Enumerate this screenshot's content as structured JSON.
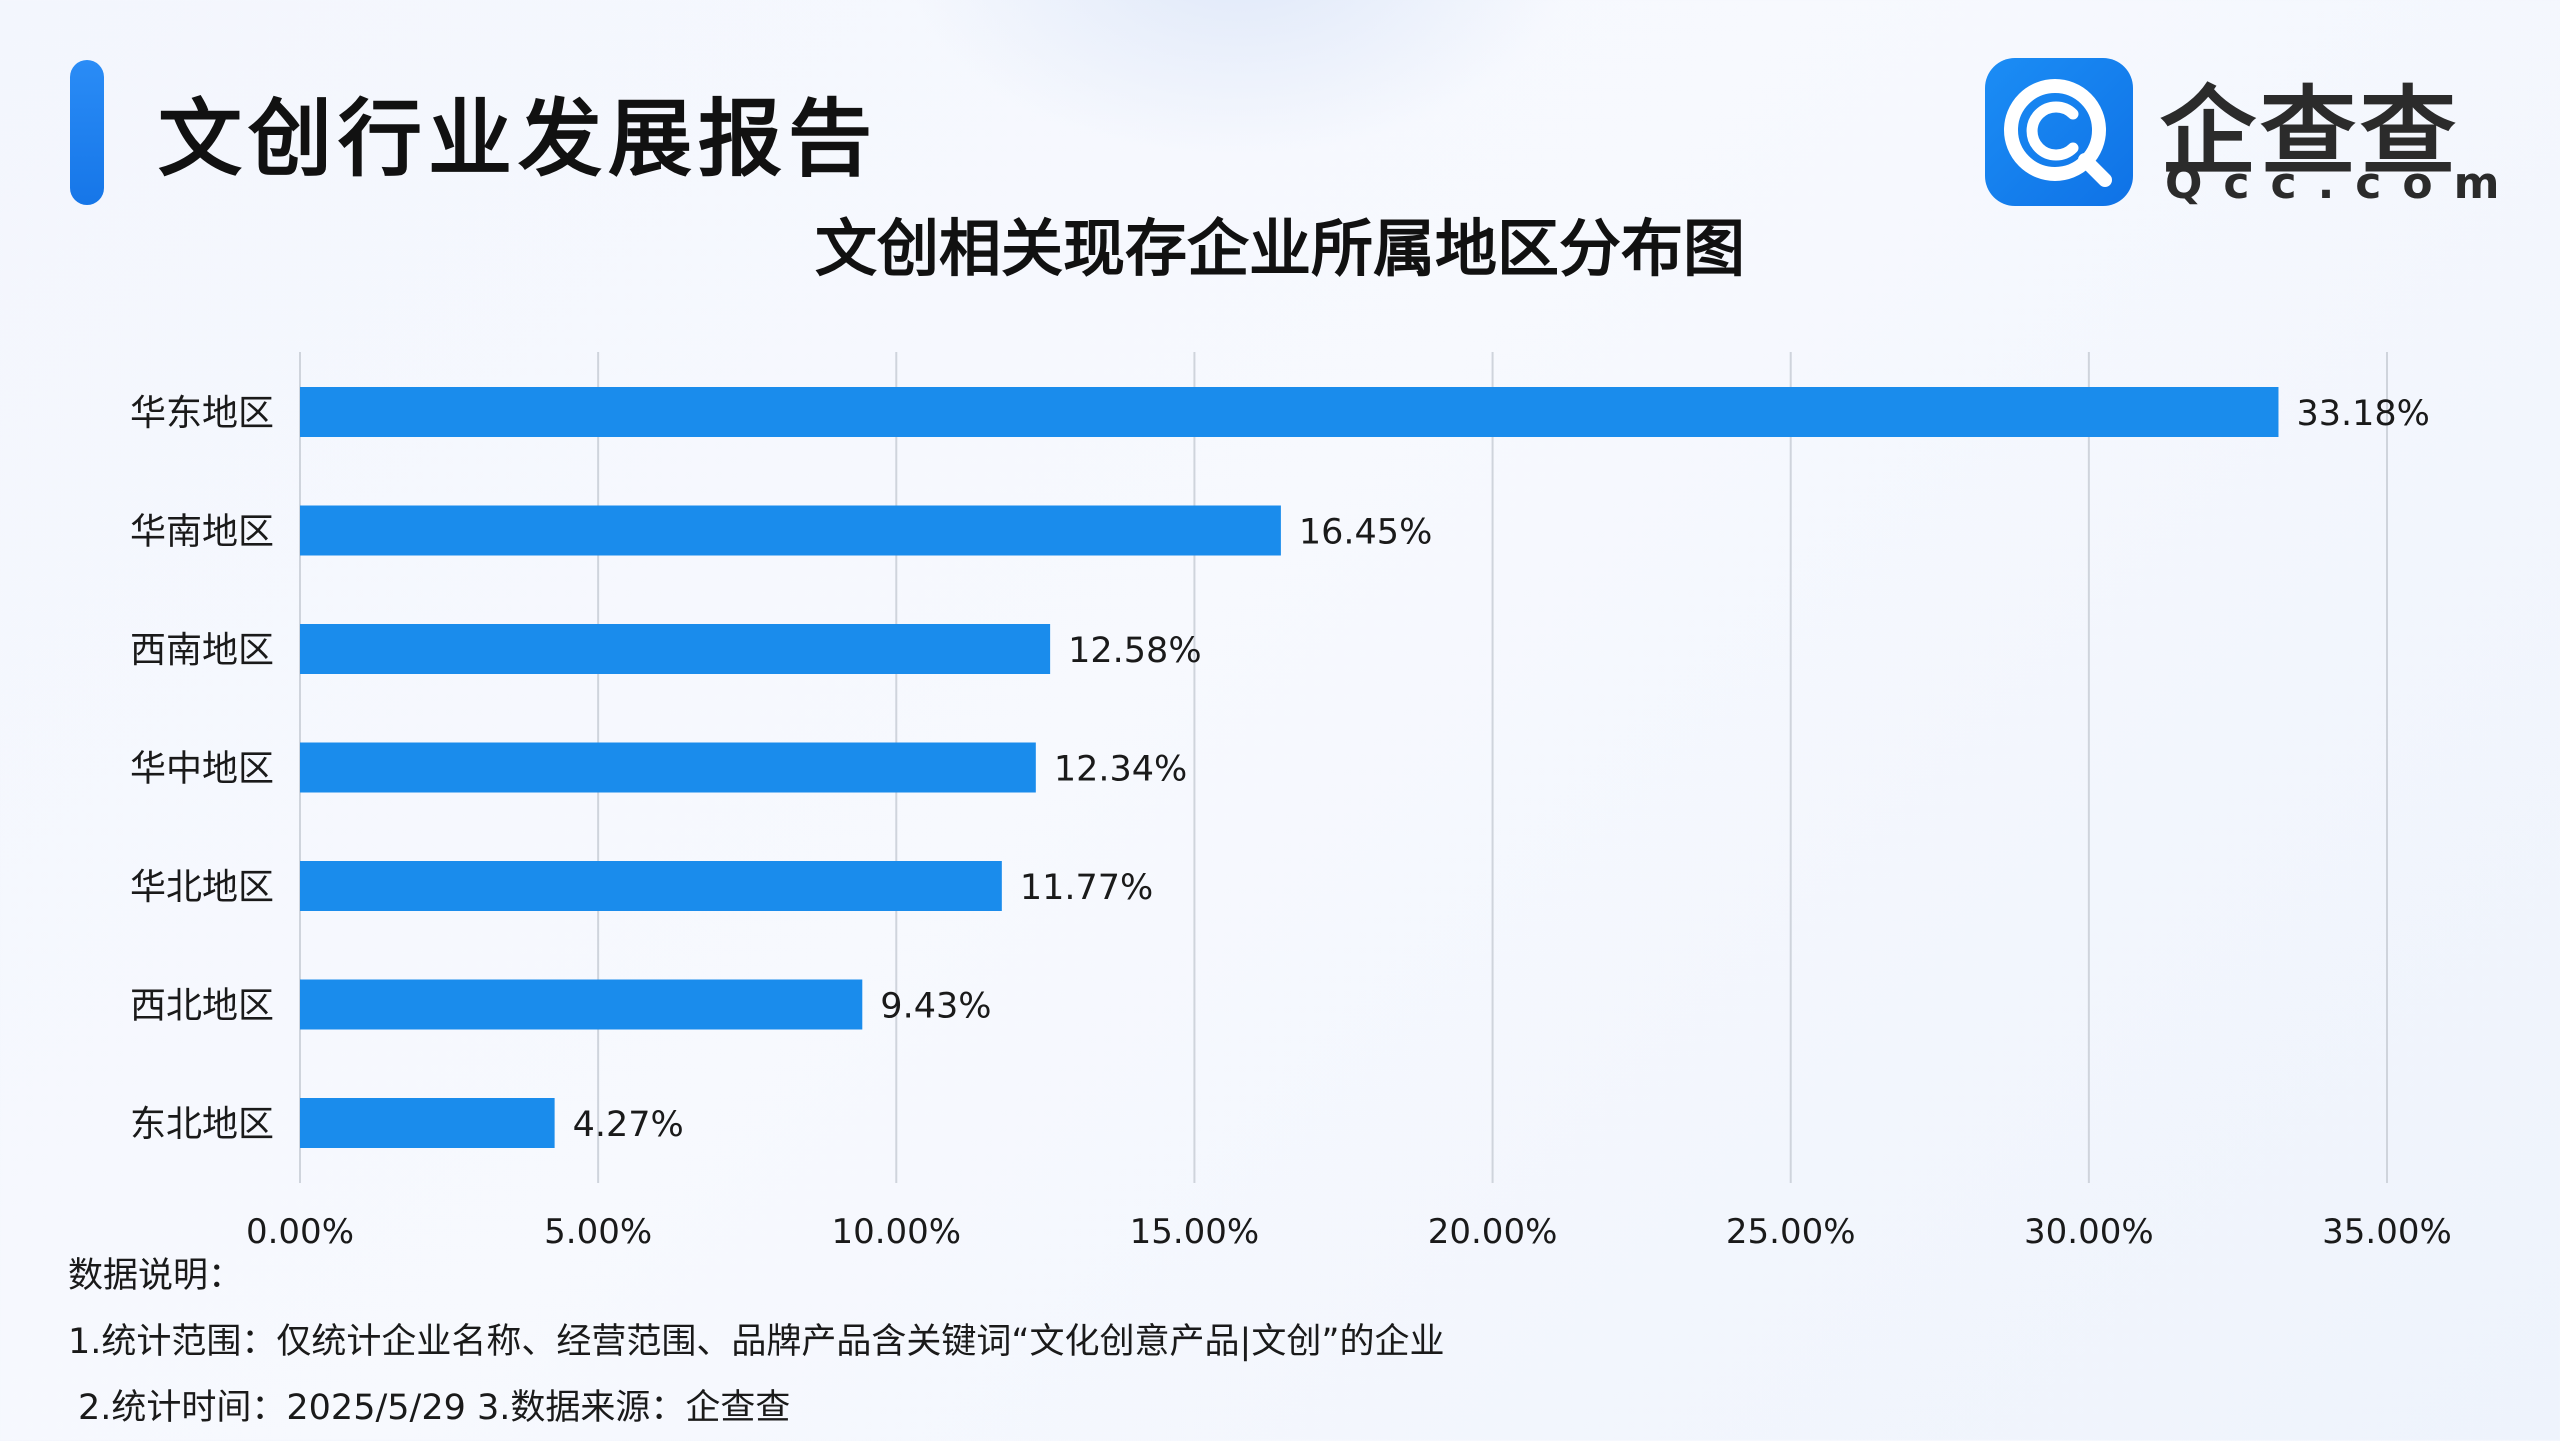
{
  "header": {
    "report_title": "文创行业发展报告",
    "logo_cn": "企查查",
    "logo_en": "Qcc.com",
    "logo_icon": "qcc-magnifier-icon",
    "accent_color": "#1a84f0"
  },
  "chart_data": {
    "type": "bar",
    "orientation": "horizontal",
    "title": "文创相关现存企业所属地区分布图",
    "categories": [
      "华东地区",
      "华南地区",
      "西南地区",
      "华中地区",
      "华北地区",
      "西北地区",
      "东北地区"
    ],
    "values": [
      33.18,
      16.45,
      12.58,
      12.34,
      11.77,
      9.43,
      4.27
    ],
    "data_labels": [
      "33.18%",
      "16.45%",
      "12.58%",
      "12.34%",
      "11.77%",
      "9.43%",
      "4.27%"
    ],
    "xlim": [
      0,
      35
    ],
    "xticks": [
      0,
      5,
      10,
      15,
      20,
      25,
      30,
      35
    ],
    "xtick_labels": [
      "0.00%",
      "5.00%",
      "10.00%",
      "15.00%",
      "20.00%",
      "25.00%",
      "30.00%",
      "35.00%"
    ],
    "xlabel": "",
    "ylabel": "",
    "grid": true,
    "legend": false,
    "bar_color": "#1a8cec",
    "grid_color": "#cfd4dc"
  },
  "notes": {
    "heading": "数据说明：",
    "line1": "1.统计范围：仅统计企业名称、经营范围、品牌产品含关键词“文化创意产品|文创”的企业",
    "line2": "2.统计时间：2025/5/29   3.数据来源：企查查"
  }
}
